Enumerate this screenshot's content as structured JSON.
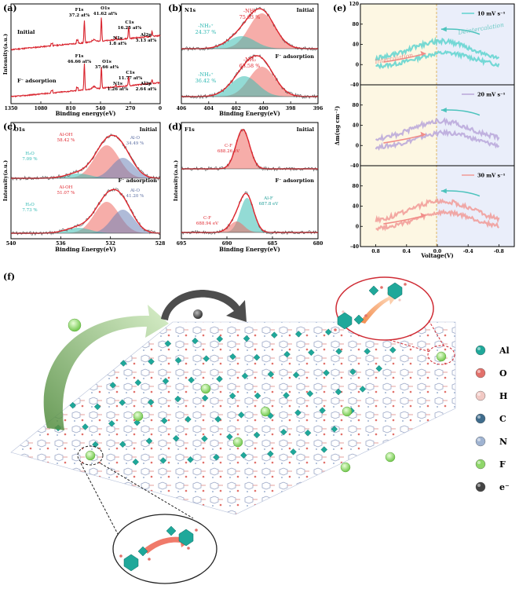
{
  "chart_data": [
    {
      "panel": "(a)",
      "type": "line",
      "xlabel": "Binding energy(eV)",
      "ylabel": "Intensity(a.u.)",
      "xlim": [
        1350,
        0
      ],
      "xticks": [
        "1350",
        "1080",
        "810",
        "540",
        "270",
        "0"
      ],
      "spectra": [
        {
          "name": "Initial",
          "peaks": [
            {
              "label": "F1s",
              "pct": "37.2 at%",
              "x": 686
            },
            {
              "label": "O1s",
              "pct": "41.62 at%",
              "x": 532
            },
            {
              "label": "N1s",
              "pct": "1.8 at%",
              "x": 400
            },
            {
              "label": "C1s",
              "pct": "16.25 at%",
              "x": 285
            },
            {
              "label": "Al2p",
              "pct": "3.13 at%",
              "x": 74
            }
          ]
        },
        {
          "name": "F⁻ adsorption",
          "peaks": [
            {
              "label": "F1s",
              "pct": "46.66 at%",
              "x": 686
            },
            {
              "label": "O1s",
              "pct": "37.66 at%",
              "x": 532
            },
            {
              "label": "N1s",
              "pct": "1.26 at%",
              "x": 400
            },
            {
              "label": "C1s",
              "pct": "11.77 at%",
              "x": 285
            },
            {
              "label": "Al2p",
              "pct": "2.64 at%",
              "x": 74
            }
          ]
        }
      ]
    },
    {
      "panel": "(b)",
      "type": "line",
      "element": "N1s",
      "xlabel": "Binding Energy(eV)",
      "ylabel": "",
      "xlim": [
        406,
        396
      ],
      "xticks": [
        "406",
        "404",
        "402",
        "400",
        "398",
        "396"
      ],
      "components": [
        {
          "state": "Initial",
          "peaks": [
            {
              "name": "-NH₂",
              "pct": "75.63 %",
              "center": 400.1
            },
            {
              "name": "-NH₃⁺",
              "pct": "24.37 %",
              "center": 401.6
            }
          ]
        },
        {
          "state": "F⁻ adsorption",
          "peaks": [
            {
              "name": "-NH₂",
              "pct": "63.58 %",
              "center": 400.1
            },
            {
              "name": "-NH₃⁺",
              "pct": "36.42 %",
              "center": 401.4
            }
          ]
        }
      ]
    },
    {
      "panel": "(c)",
      "type": "line",
      "element": "O1s",
      "xlabel": "Binding Energy(eV)",
      "ylabel": "Intensity(a.u.)",
      "xlim": [
        540,
        528
      ],
      "xticks": [
        "540",
        "536",
        "532",
        "528"
      ],
      "components": [
        {
          "state": "Initial",
          "peaks": [
            {
              "name": "Al-OH",
              "pct": "58.42 %",
              "center": 532.3
            },
            {
              "name": "H₂O",
              "pct": "7.09 %",
              "center": 534.6
            },
            {
              "name": "Al-O",
              "pct": "34.49 %",
              "center": 531.0
            }
          ]
        },
        {
          "state": "F⁻ adsorption",
          "peaks": [
            {
              "name": "Al-OH",
              "pct": "51.07 %",
              "center": 532.3
            },
            {
              "name": "H₂O",
              "pct": "7.73 %",
              "center": 534.6
            },
            {
              "name": "Al-O",
              "pct": "41.20 %",
              "center": 531.0
            }
          ]
        }
      ]
    },
    {
      "panel": "(d)",
      "type": "line",
      "element": "F1s",
      "xlabel": "Binding Energy(eV)",
      "ylabel": "Intensity(a.u.)",
      "xlim": [
        695,
        680
      ],
      "xticks": [
        "695",
        "690",
        "685",
        "680"
      ],
      "components": [
        {
          "state": "Initial",
          "peaks": [
            {
              "name": "C-F",
              "pct": "688.26 eV",
              "center": 688.26
            }
          ]
        },
        {
          "state": "F⁻ adsorption",
          "peaks": [
            {
              "name": "C-F",
              "pct": "688.94 eV",
              "center": 688.94
            },
            {
              "name": "Al-F",
              "pct": "687.8 eV",
              "center": 687.8
            }
          ]
        }
      ]
    },
    {
      "panel": "(e)",
      "type": "line",
      "xlabel": "Voltage(V)",
      "ylabel": "Δm(ug cm⁻²)",
      "xlim": [
        1.0,
        -1.0
      ],
      "xticks": [
        "0.8",
        "0.4",
        "0.0",
        "-0.4",
        "-0.8"
      ],
      "ylim": [
        -40,
        120
      ],
      "yticks": [
        "-40",
        "0",
        "40",
        "80",
        "120"
      ],
      "subplots": [
        {
          "name": "10 mV s⁻¹",
          "color": "#5fd3cf"
        },
        {
          "name": "20 mV s⁻¹",
          "color": "#b9a6d9"
        },
        {
          "name": "30 mV s⁻¹",
          "color": "#f19a96"
        }
      ],
      "annotations": [
        "Deintercalation",
        "Intercalation"
      ]
    }
  ],
  "schematic": {
    "panel": "(f)",
    "legend": [
      {
        "label": "Al",
        "color": "#1fa89a"
      },
      {
        "label": "O",
        "color": "#e2716b"
      },
      {
        "label": "H",
        "color": "#f1c9c4"
      },
      {
        "label": "C",
        "color": "#3f6c8c"
      },
      {
        "label": "N",
        "color": "#9fb3d1"
      },
      {
        "label": "F",
        "color": "#8fd66a"
      },
      {
        "label": "e⁻",
        "color": "#444444"
      }
    ]
  },
  "colors": {
    "red": "#e0262e",
    "teal": "#2ab7b1",
    "navy": "#5c6fa3",
    "grayline": "#555555",
    "panelYellow": "#fdf7e3",
    "panelBlue": "#eaeefa"
  }
}
